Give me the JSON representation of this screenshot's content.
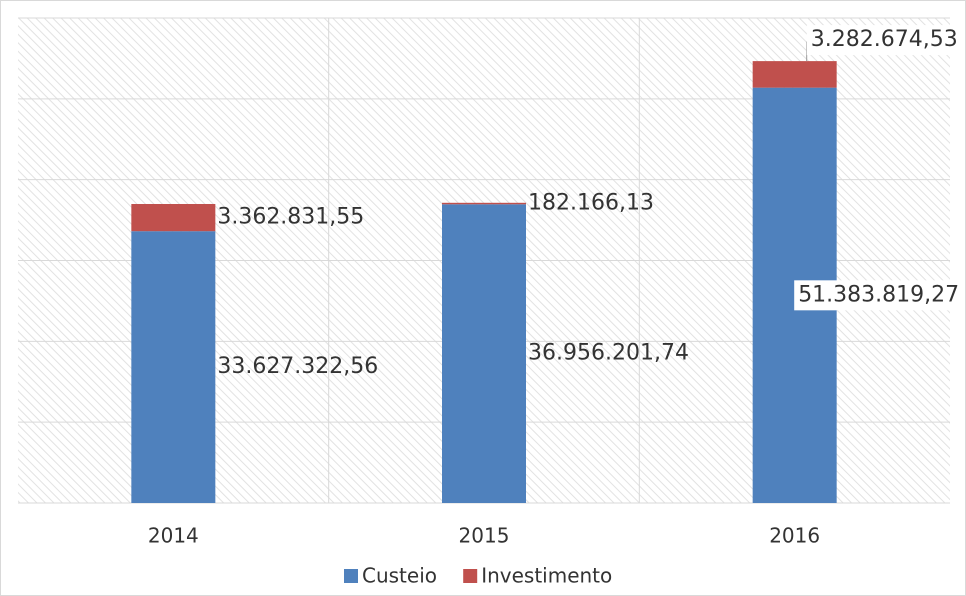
{
  "chart_data": {
    "type": "stacked-bar",
    "categories": [
      "2014",
      "2015",
      "2016"
    ],
    "series": [
      {
        "name": "Custeio",
        "color": "#4f81bd",
        "values": [
          33627322.56,
          36956201.74,
          51383819.27
        ],
        "value_labels": [
          "33.627.322,56",
          "36.956.201,74",
          "51.383.819,27"
        ]
      },
      {
        "name": "Investimento",
        "color": "#c0504d",
        "values": [
          3362831.55,
          182166.13,
          3282674.53
        ],
        "value_labels": [
          "3.362.831,55",
          "182.166,13",
          "3.282.674,53"
        ]
      }
    ],
    "ylim": [
      0,
      60000000
    ],
    "yticks": [
      0,
      10000000,
      20000000,
      30000000,
      40000000,
      50000000,
      60000000
    ],
    "grid": true,
    "legend": "bottom"
  }
}
